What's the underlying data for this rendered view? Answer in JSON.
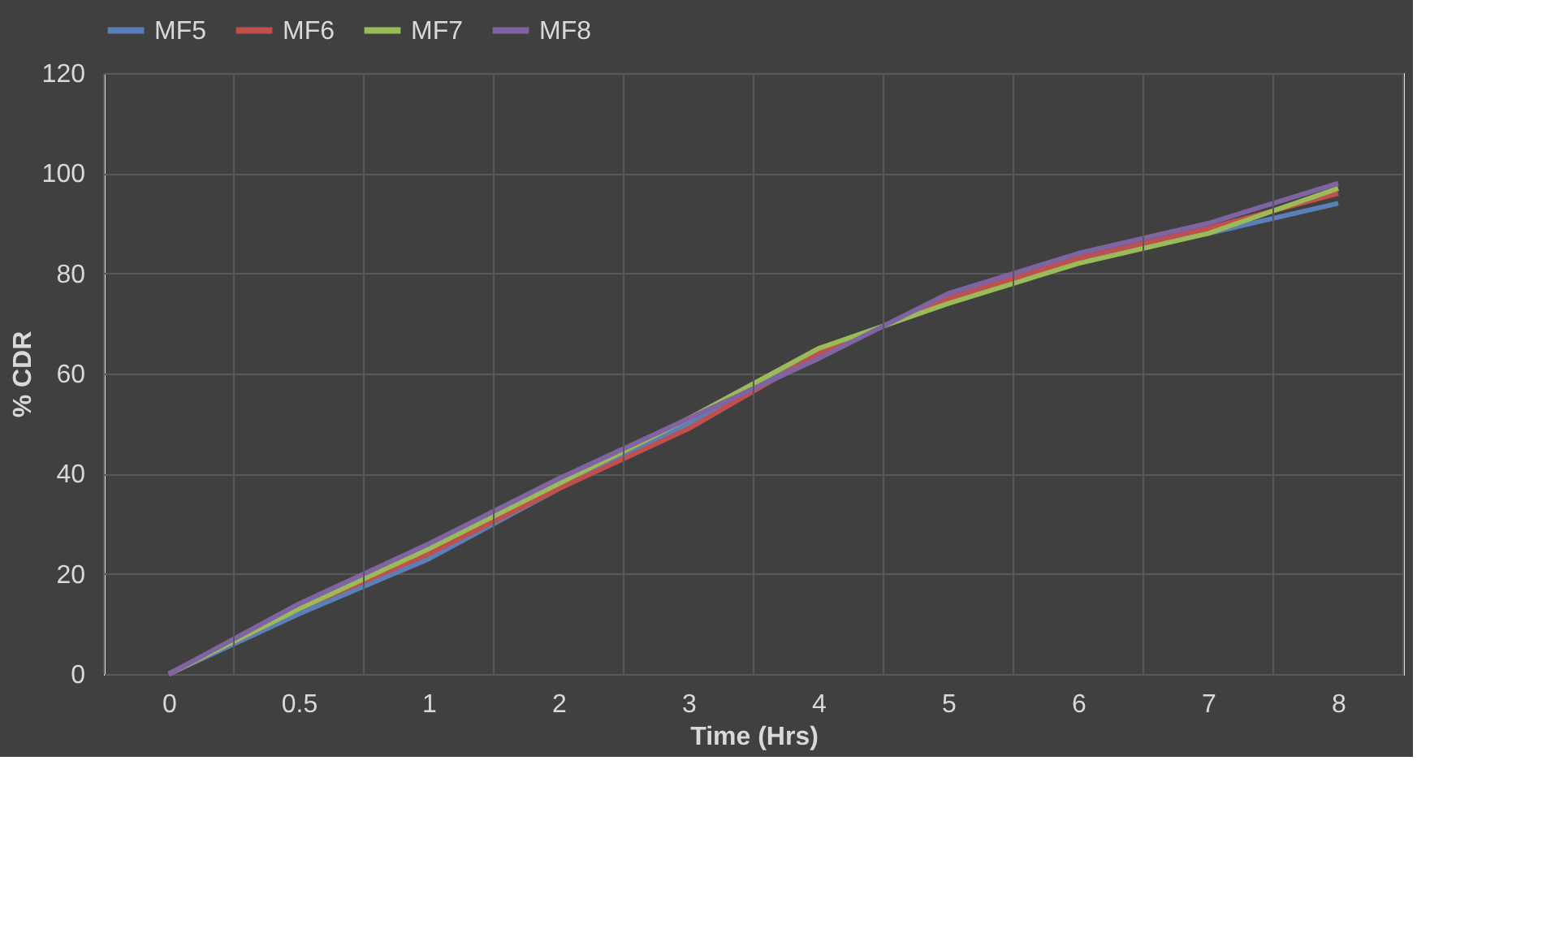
{
  "chart_data": {
    "type": "line",
    "xlabel": "Time (Hrs)",
    "ylabel": "% CDR",
    "categories": [
      "0",
      "0.5",
      "1",
      "2",
      "3",
      "4",
      "5",
      "6",
      "7",
      "8"
    ],
    "series": [
      {
        "name": "MF5",
        "color": "#5b7fb8",
        "values": [
          0,
          12,
          23,
          37,
          50,
          64,
          75,
          83,
          88,
          94
        ]
      },
      {
        "name": "MF6",
        "color": "#c0504d",
        "values": [
          0,
          13,
          24,
          37,
          49,
          64,
          75,
          83,
          89,
          96
        ]
      },
      {
        "name": "MF7",
        "color": "#9bbb59",
        "values": [
          0,
          13,
          25,
          38,
          51,
          65,
          74,
          82,
          88,
          97
        ]
      },
      {
        "name": "MF8",
        "color": "#8064a2",
        "values": [
          0,
          14,
          26,
          39,
          51,
          63,
          76,
          84,
          90,
          98
        ]
      }
    ],
    "ylim": [
      0,
      120
    ],
    "yticks": [
      0,
      20,
      40,
      60,
      80,
      100,
      120
    ],
    "grid": true,
    "legend": "top",
    "marker": "none",
    "line_style": "solid"
  }
}
